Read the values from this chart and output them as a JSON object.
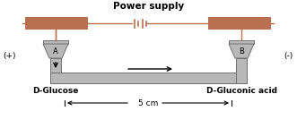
{
  "title": "Power supply",
  "title_fontsize": 7.5,
  "bg_color": "#ffffff",
  "tube_color": "#b8b8b8",
  "tube_edge_color": "#707070",
  "wire_color": "#b87050",
  "block_color": "#b87050",
  "label_A": "A",
  "label_B": "B",
  "label_plus": "(+)",
  "label_minus": "(-)",
  "label_glucose": "D-Glucose",
  "label_gluconic": "D-Gluconic acid",
  "label_5cm": "5 cm",
  "text_fontsize": 6.5,
  "ab_fontsize": 6,
  "bold_fontsize": 6.5,
  "wire_lw": 1.0,
  "tube_lw": 0.7,
  "fig_w": 3.31,
  "fig_h": 1.53,
  "dpi": 100
}
